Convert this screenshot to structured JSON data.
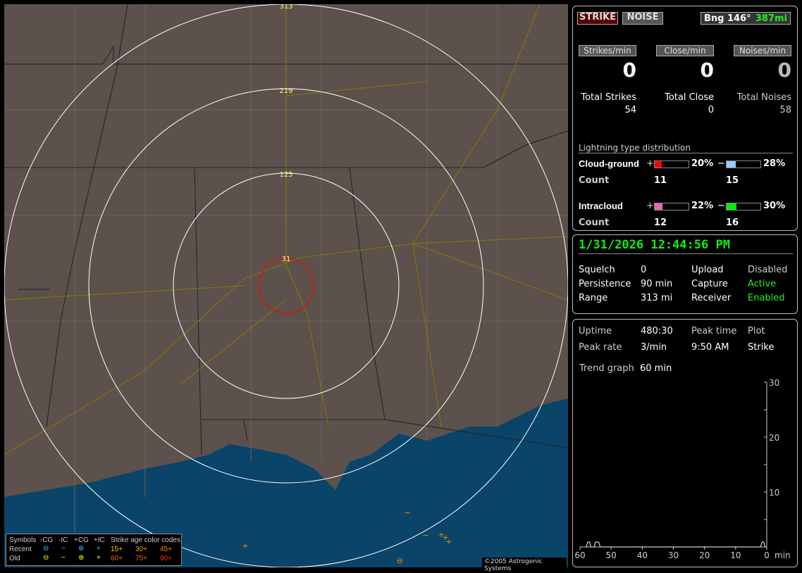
{
  "map": {
    "range_labels": [
      "313",
      "219",
      "125",
      "31"
    ],
    "legend": {
      "headers": [
        "Symbols",
        "-CG",
        "-IC",
        "+CG",
        "+IC",
        "Strike age color codes"
      ],
      "rows": [
        {
          "label": "Recent",
          "ages": [
            "15+",
            "30+",
            "45+"
          ]
        },
        {
          "label": "Old",
          "ages": [
            "60+",
            "75+",
            "90+"
          ]
        }
      ],
      "age_colors": [
        "#ffcc00",
        "#ff9900",
        "#ff6600",
        "#ff6600",
        "#ff3300",
        "#ff2200"
      ]
    },
    "credit": "©2005 Astrogenic Systems",
    "colors": {
      "land": "#5c514c",
      "water": "#0a4468",
      "range_rings": "#ffffff",
      "close_ring": "#ff0000",
      "roads": "#8a7a00"
    }
  },
  "status": {
    "strike_label": "STRIKE",
    "noise_label": "NOISE",
    "bearing": "Bng 146°",
    "distance": "387mi",
    "rates": [
      {
        "label": "Strikes/min",
        "value": "0"
      },
      {
        "label": "Close/min",
        "value": "0"
      },
      {
        "label": "Noises/min",
        "value": "0"
      }
    ],
    "totals": [
      {
        "label": "Total Strikes",
        "value": "54"
      },
      {
        "label": "Total Close",
        "value": "0"
      },
      {
        "label": "Total Noises",
        "value": "58"
      }
    ],
    "distribution": {
      "title": "Lightning type distribution",
      "count_label": "Count",
      "types": [
        {
          "name": "Cloud-ground",
          "pos_sign": "+",
          "pos_pct": "20%",
          "pos_value": 20,
          "pos_color": "#ff0000",
          "pos_count": "11",
          "neg_sign": "−",
          "neg_pct": "28%",
          "neg_value": 28,
          "neg_color": "#99ccff",
          "neg_count": "15"
        },
        {
          "name": "Intracloud",
          "pos_sign": "+",
          "pos_pct": "22%",
          "pos_value": 22,
          "pos_color": "#ee66aa",
          "pos_count": "12",
          "neg_sign": "−",
          "neg_pct": "30%",
          "neg_value": 30,
          "neg_color": "#00ee00",
          "neg_count": "16"
        }
      ]
    }
  },
  "info": {
    "datetime": "1/31/2026 12:44:56 PM",
    "rows": [
      {
        "k1": "Squelch",
        "v1": "0",
        "k2": "Upload",
        "v2": "Disabled"
      },
      {
        "k1": "Persistence",
        "v1": "90 min",
        "k2": "Capture",
        "v2": "Active"
      },
      {
        "k1": "Range",
        "v1": "313 mi",
        "k2": "Receiver",
        "v2": "Enabled"
      }
    ]
  },
  "stats": {
    "uptime_label": "Uptime",
    "uptime": "480:30",
    "peak_time_label": "Peak time",
    "plot_label": "Plot",
    "peak_rate_label": "Peak rate",
    "peak_rate": "3/min",
    "peak_time": "9:50 AM",
    "plot": "Strike",
    "trend_label": "Trend graph",
    "trend": "60 min"
  },
  "chart_data": {
    "type": "line",
    "x_ticks": [
      "60",
      "50",
      "40",
      "30",
      "20",
      "10",
      "0"
    ],
    "xlabel": "min",
    "y_ticks": [
      "30",
      "20",
      "10"
    ],
    "xlim": [
      60,
      0
    ],
    "ylim": [
      0,
      30
    ],
    "x": [
      58,
      57.5,
      57,
      56.5,
      55.5,
      55,
      54,
      53.5,
      2,
      1.5,
      1,
      0.5
    ],
    "y": [
      0,
      1,
      1,
      0,
      0,
      1,
      1,
      0,
      0,
      1,
      1,
      0
    ]
  }
}
